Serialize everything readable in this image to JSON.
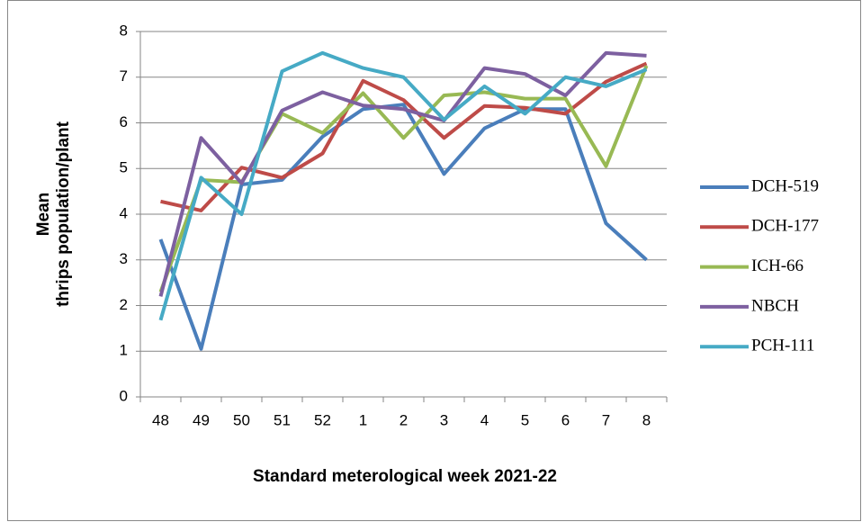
{
  "chart_data": {
    "type": "line",
    "xlabel": "Standard meterological week 2021-22",
    "ylabel": "Mean thrips population/plant",
    "categories": [
      "48",
      "49",
      "50",
      "51",
      "52",
      "1",
      "2",
      "3",
      "4",
      "5",
      "6",
      "7",
      "8"
    ],
    "series": [
      {
        "name": "DCH-519",
        "color": "#4a7ebb",
        "values": [
          3.45,
          1.05,
          4.65,
          4.75,
          5.7,
          6.3,
          6.4,
          4.88,
          5.88,
          6.3,
          6.3,
          3.8,
          3.0
        ]
      },
      {
        "name": "DCH-177",
        "color": "#be4b48",
        "values": [
          4.28,
          4.08,
          5.02,
          4.8,
          5.33,
          6.92,
          6.5,
          5.67,
          6.37,
          6.33,
          6.2,
          6.9,
          7.3
        ]
      },
      {
        "name": "ICH-66",
        "color": "#98b954",
        "values": [
          2.3,
          4.75,
          4.7,
          6.2,
          5.78,
          6.65,
          5.67,
          6.6,
          6.67,
          6.53,
          6.53,
          5.05,
          7.25
        ]
      },
      {
        "name": "NBCH",
        "color": "#7d60a0",
        "values": [
          2.2,
          5.67,
          4.68,
          6.27,
          6.67,
          6.38,
          6.3,
          6.05,
          7.2,
          7.07,
          6.6,
          7.53,
          7.47
        ]
      },
      {
        "name": "PCH-111",
        "color": "#46aac5",
        "values": [
          1.68,
          4.8,
          4.0,
          7.13,
          7.53,
          7.2,
          7.0,
          6.07,
          6.8,
          6.2,
          7.0,
          6.8,
          7.17
        ]
      }
    ],
    "ylim": [
      0,
      8
    ],
    "yticks": [
      0,
      1,
      2,
      3,
      4,
      5,
      6,
      7,
      8
    ],
    "grid": true,
    "legend": "right"
  }
}
